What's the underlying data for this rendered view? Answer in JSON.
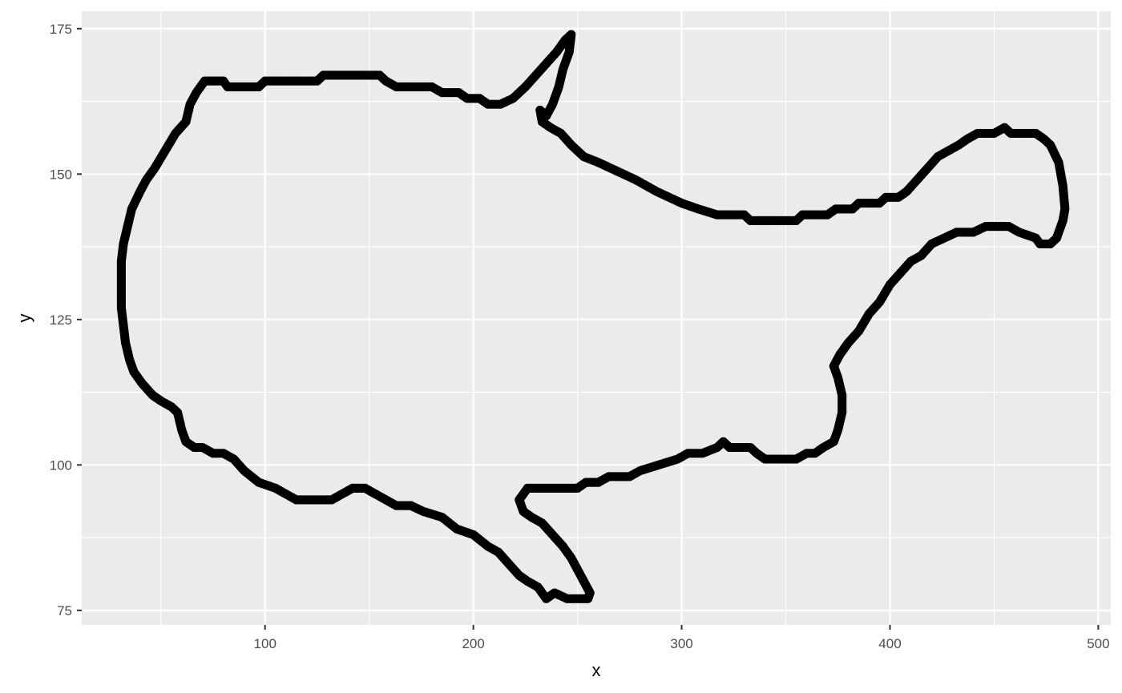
{
  "chart_data": {
    "type": "scatter",
    "title": "",
    "xlabel": "x",
    "ylabel": "y",
    "xlim": [
      12,
      506
    ],
    "ylim": [
      72.5,
      178
    ],
    "x_ticks": [
      100,
      200,
      300,
      400,
      500
    ],
    "x_tick_labels": [
      "100",
      "200",
      "300",
      "400",
      "500"
    ],
    "y_ticks": [
      75,
      100,
      125,
      150,
      175
    ],
    "y_tick_labels": [
      "75",
      "100",
      "125",
      "150",
      "175"
    ],
    "grid": true,
    "legend": "none",
    "colors": {
      "panel_background": "#EBEBEB",
      "grid_line": "#FFFFFF",
      "point": "#000000",
      "axis_text": "#4D4D4D",
      "tick_mark": "#333333"
    },
    "outline_vertices": [
      [
        31,
        135
      ],
      [
        32,
        138
      ],
      [
        34,
        141
      ],
      [
        36,
        144
      ],
      [
        40,
        147
      ],
      [
        43,
        149
      ],
      [
        47,
        151
      ],
      [
        52,
        154
      ],
      [
        57,
        157
      ],
      [
        62,
        159
      ],
      [
        64,
        162
      ],
      [
        67,
        164
      ],
      [
        71,
        166
      ],
      [
        80,
        166
      ],
      [
        82,
        165
      ],
      [
        97,
        165
      ],
      [
        100,
        166
      ],
      [
        125,
        166
      ],
      [
        128,
        167
      ],
      [
        155,
        167
      ],
      [
        158,
        166
      ],
      [
        163,
        165
      ],
      [
        180,
        165
      ],
      [
        185,
        164
      ],
      [
        193,
        164
      ],
      [
        197,
        163
      ],
      [
        203,
        163
      ],
      [
        207,
        162
      ],
      [
        213,
        162
      ],
      [
        219,
        163
      ],
      [
        225,
        165
      ],
      [
        230,
        167
      ],
      [
        235,
        169
      ],
      [
        240,
        171
      ],
      [
        244,
        173
      ],
      [
        247,
        174
      ],
      [
        246,
        171
      ],
      [
        243,
        168
      ],
      [
        241,
        165
      ],
      [
        238,
        162
      ],
      [
        235,
        160
      ],
      [
        232,
        161
      ],
      [
        233,
        159
      ],
      [
        237,
        158
      ],
      [
        242,
        157
      ],
      [
        247,
        155
      ],
      [
        253,
        153
      ],
      [
        260,
        152
      ],
      [
        266,
        151
      ],
      [
        272,
        150
      ],
      [
        278,
        149
      ],
      [
        283,
        148
      ],
      [
        288,
        147
      ],
      [
        294,
        146
      ],
      [
        300,
        145
      ],
      [
        308,
        144
      ],
      [
        317,
        143
      ],
      [
        330,
        143
      ],
      [
        333,
        142
      ],
      [
        355,
        142
      ],
      [
        358,
        143
      ],
      [
        370,
        143
      ],
      [
        374,
        144
      ],
      [
        382,
        144
      ],
      [
        385,
        145
      ],
      [
        395,
        145
      ],
      [
        398,
        146
      ],
      [
        404,
        146
      ],
      [
        408,
        147
      ],
      [
        413,
        149
      ],
      [
        418,
        151
      ],
      [
        423,
        153
      ],
      [
        428,
        154
      ],
      [
        433,
        155
      ],
      [
        437,
        156
      ],
      [
        442,
        157
      ],
      [
        450,
        157
      ],
      [
        455,
        158
      ],
      [
        458,
        157
      ],
      [
        470,
        157
      ],
      [
        474,
        156
      ],
      [
        477,
        155
      ],
      [
        481,
        152
      ],
      [
        483,
        148
      ],
      [
        484,
        144
      ],
      [
        483,
        142
      ],
      [
        480,
        139
      ],
      [
        477,
        138
      ],
      [
        472,
        138
      ],
      [
        470,
        139
      ],
      [
        462,
        140
      ],
      [
        457,
        141
      ],
      [
        446,
        141
      ],
      [
        440,
        140
      ],
      [
        432,
        140
      ],
      [
        426,
        139
      ],
      [
        420,
        138
      ],
      [
        415,
        136
      ],
      [
        410,
        135
      ],
      [
        405,
        133
      ],
      [
        400,
        131
      ],
      [
        395,
        128
      ],
      [
        390,
        126
      ],
      [
        385,
        123
      ],
      [
        380,
        121
      ],
      [
        376,
        119
      ],
      [
        373,
        117
      ],
      [
        375,
        115
      ],
      [
        377,
        112
      ],
      [
        377,
        109
      ],
      [
        375,
        106
      ],
      [
        373,
        104
      ],
      [
        368,
        103
      ],
      [
        364,
        102
      ],
      [
        360,
        102
      ],
      [
        355,
        101
      ],
      [
        340,
        101
      ],
      [
        336,
        102
      ],
      [
        333,
        103
      ],
      [
        323,
        103
      ],
      [
        320,
        104
      ],
      [
        317,
        103
      ],
      [
        310,
        102
      ],
      [
        303,
        102
      ],
      [
        298,
        101
      ],
      [
        289,
        100
      ],
      [
        280,
        99
      ],
      [
        275,
        98
      ],
      [
        265,
        98
      ],
      [
        260,
        97
      ],
      [
        254,
        97
      ],
      [
        250,
        96
      ],
      [
        229,
        96
      ],
      [
        226,
        96
      ],
      [
        224,
        95
      ],
      [
        222,
        94
      ],
      [
        224,
        92
      ],
      [
        228,
        91
      ],
      [
        233,
        90
      ],
      [
        238,
        88
      ],
      [
        243,
        86
      ],
      [
        247,
        84
      ],
      [
        250,
        82
      ],
      [
        253,
        80
      ],
      [
        256,
        78
      ],
      [
        255,
        77
      ],
      [
        250,
        77
      ],
      [
        245,
        77
      ],
      [
        239,
        78
      ],
      [
        235,
        77
      ],
      [
        231,
        79
      ],
      [
        226,
        80
      ],
      [
        222,
        81
      ],
      [
        217,
        83
      ],
      [
        212,
        85
      ],
      [
        207,
        86
      ],
      [
        200,
        88
      ],
      [
        192,
        89
      ],
      [
        185,
        91
      ],
      [
        176,
        92
      ],
      [
        170,
        93
      ],
      [
        163,
        93
      ],
      [
        158,
        94
      ],
      [
        153,
        95
      ],
      [
        148,
        96
      ],
      [
        142,
        96
      ],
      [
        137,
        95
      ],
      [
        132,
        94
      ],
      [
        115,
        94
      ],
      [
        110,
        95
      ],
      [
        105,
        96
      ],
      [
        97,
        97
      ],
      [
        90,
        99
      ],
      [
        85,
        101
      ],
      [
        80,
        102
      ],
      [
        75,
        102
      ],
      [
        70,
        103
      ],
      [
        66,
        103
      ],
      [
        62,
        104
      ],
      [
        60,
        106
      ],
      [
        58,
        109
      ],
      [
        55,
        110
      ],
      [
        50,
        111
      ],
      [
        46,
        112
      ],
      [
        41,
        114
      ],
      [
        37,
        116
      ],
      [
        35,
        118
      ],
      [
        33,
        121
      ],
      [
        32,
        124
      ],
      [
        31,
        127
      ],
      [
        31,
        131
      ],
      [
        31,
        135
      ]
    ]
  }
}
